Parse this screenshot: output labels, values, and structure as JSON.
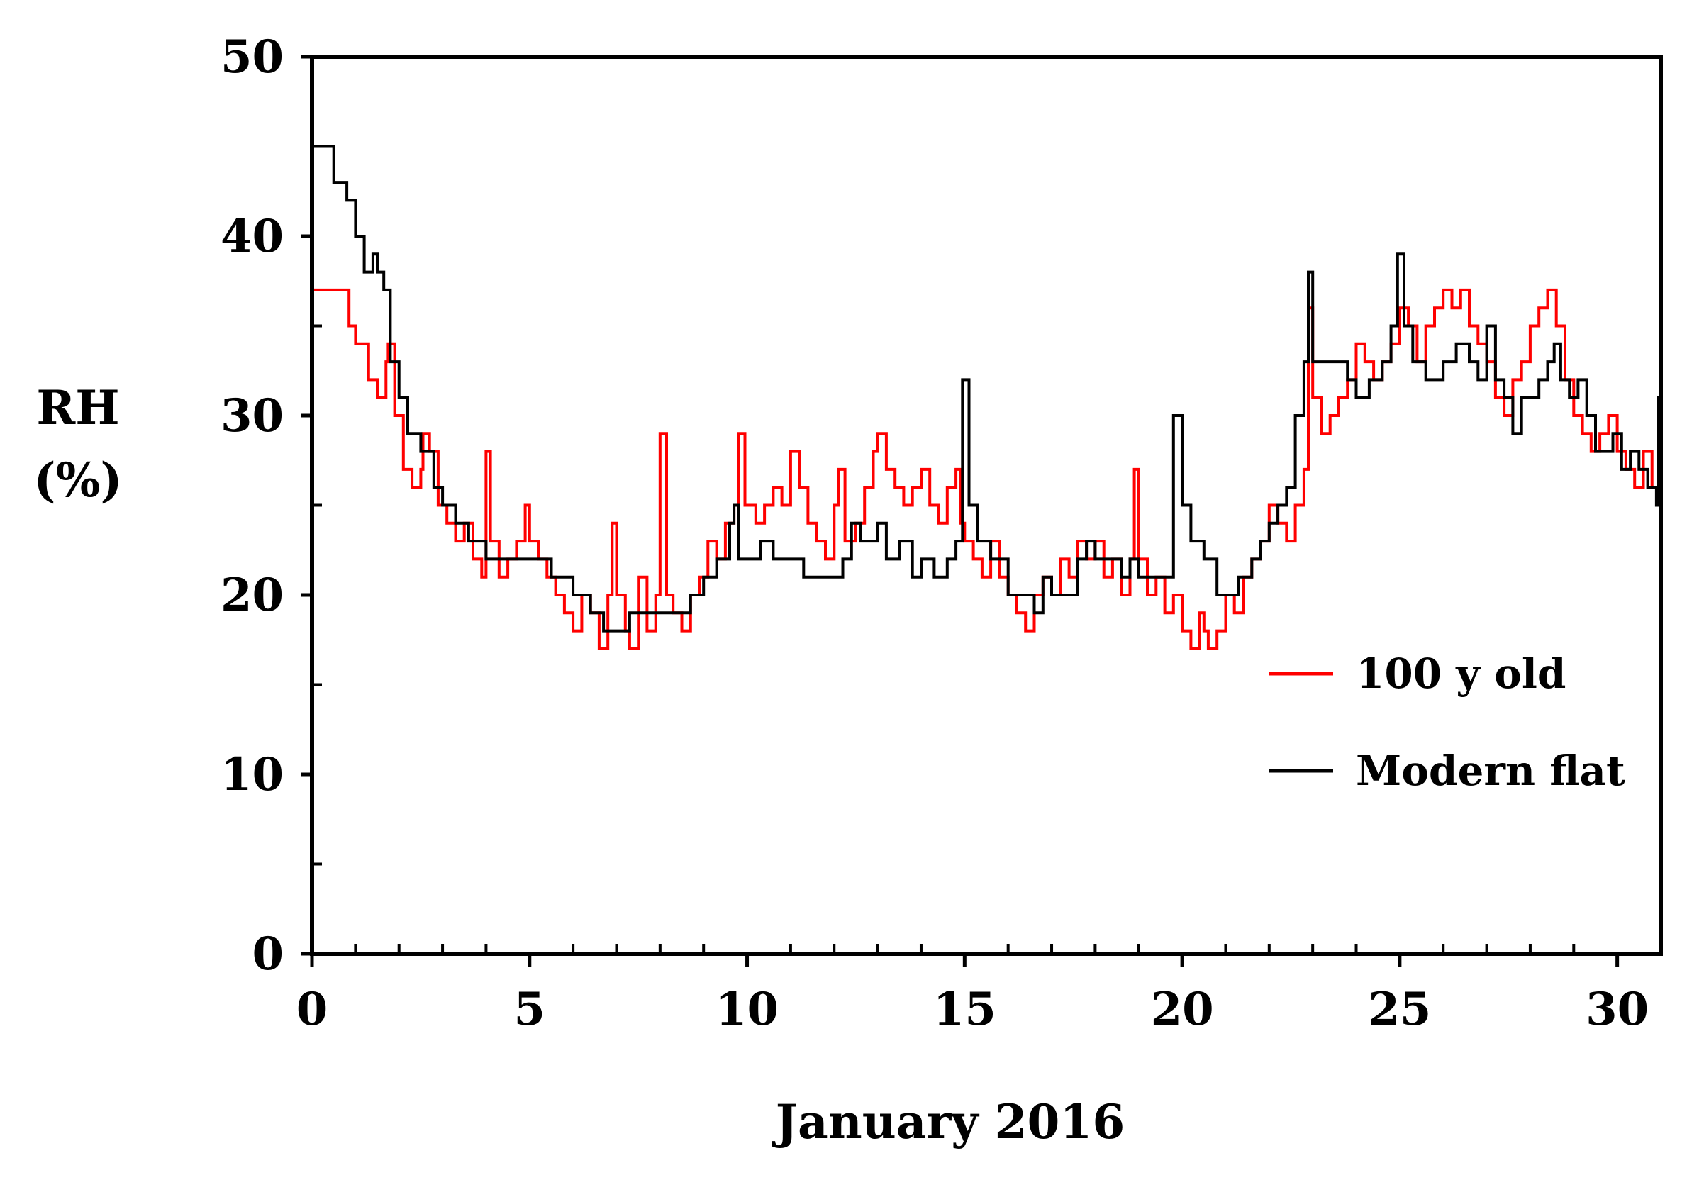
{
  "chart_data": {
    "type": "line",
    "title": "",
    "xlabel": "January 2016",
    "ylabel": [
      "RH",
      "(%)"
    ],
    "xlim": [
      0,
      31
    ],
    "ylim": [
      0,
      50
    ],
    "x_ticks": [
      0,
      5,
      10,
      15,
      20,
      25,
      30
    ],
    "y_ticks": [
      0,
      10,
      20,
      30,
      40,
      50
    ],
    "x_tick_labels": [
      "0",
      "5",
      "10",
      "15",
      "20",
      "25",
      "30"
    ],
    "y_tick_labels": [
      "0",
      "10",
      "20",
      "30",
      "40",
      "50"
    ],
    "grid": false,
    "legend_position": "right",
    "series": [
      {
        "name": "100 y old",
        "color": "#ff0000",
        "points": [
          [
            0.0,
            37
          ],
          [
            0.8,
            37
          ],
          [
            0.85,
            35
          ],
          [
            1.0,
            34
          ],
          [
            1.3,
            32
          ],
          [
            1.5,
            31
          ],
          [
            1.7,
            33
          ],
          [
            1.75,
            34
          ],
          [
            1.9,
            30
          ],
          [
            2.1,
            27
          ],
          [
            2.3,
            26
          ],
          [
            2.5,
            27
          ],
          [
            2.55,
            29
          ],
          [
            2.7,
            28
          ],
          [
            2.9,
            25
          ],
          [
            3.1,
            24
          ],
          [
            3.3,
            23
          ],
          [
            3.5,
            24
          ],
          [
            3.7,
            22
          ],
          [
            3.9,
            21
          ],
          [
            4.0,
            28
          ],
          [
            4.1,
            23
          ],
          [
            4.3,
            21
          ],
          [
            4.5,
            22
          ],
          [
            4.7,
            23
          ],
          [
            4.9,
            25
          ],
          [
            5.0,
            23
          ],
          [
            5.2,
            22
          ],
          [
            5.4,
            21
          ],
          [
            5.6,
            20
          ],
          [
            5.8,
            19
          ],
          [
            6.0,
            18
          ],
          [
            6.2,
            20
          ],
          [
            6.4,
            19
          ],
          [
            6.6,
            17
          ],
          [
            6.8,
            20
          ],
          [
            6.9,
            24
          ],
          [
            7.0,
            20
          ],
          [
            7.2,
            18
          ],
          [
            7.3,
            17
          ],
          [
            7.5,
            21
          ],
          [
            7.7,
            18
          ],
          [
            7.9,
            20
          ],
          [
            8.0,
            29
          ],
          [
            8.15,
            20
          ],
          [
            8.3,
            19
          ],
          [
            8.5,
            18
          ],
          [
            8.7,
            20
          ],
          [
            8.9,
            21
          ],
          [
            9.1,
            23
          ],
          [
            9.3,
            22
          ],
          [
            9.5,
            24
          ],
          [
            9.7,
            25
          ],
          [
            9.8,
            29
          ],
          [
            9.95,
            25
          ],
          [
            10.2,
            24
          ],
          [
            10.4,
            25
          ],
          [
            10.6,
            26
          ],
          [
            10.8,
            25
          ],
          [
            11.0,
            28
          ],
          [
            11.2,
            26
          ],
          [
            11.4,
            24
          ],
          [
            11.6,
            23
          ],
          [
            11.8,
            22
          ],
          [
            12.0,
            25
          ],
          [
            12.1,
            27
          ],
          [
            12.25,
            23
          ],
          [
            12.5,
            24
          ],
          [
            12.7,
            26
          ],
          [
            12.9,
            28
          ],
          [
            13.0,
            29
          ],
          [
            13.2,
            27
          ],
          [
            13.4,
            26
          ],
          [
            13.6,
            25
          ],
          [
            13.8,
            26
          ],
          [
            14.0,
            27
          ],
          [
            14.2,
            25
          ],
          [
            14.4,
            24
          ],
          [
            14.6,
            26
          ],
          [
            14.8,
            27
          ],
          [
            14.9,
            24
          ],
          [
            15.0,
            23
          ],
          [
            15.2,
            22
          ],
          [
            15.4,
            21
          ],
          [
            15.6,
            23
          ],
          [
            15.8,
            21
          ],
          [
            16.0,
            20
          ],
          [
            16.2,
            19
          ],
          [
            16.4,
            18
          ],
          [
            16.6,
            20
          ],
          [
            16.8,
            21
          ],
          [
            17.0,
            20
          ],
          [
            17.2,
            22
          ],
          [
            17.4,
            21
          ],
          [
            17.6,
            23
          ],
          [
            17.8,
            22
          ],
          [
            18.0,
            23
          ],
          [
            18.2,
            21
          ],
          [
            18.4,
            22
          ],
          [
            18.6,
            20
          ],
          [
            18.8,
            22
          ],
          [
            18.9,
            27
          ],
          [
            19.0,
            22
          ],
          [
            19.2,
            20
          ],
          [
            19.4,
            21
          ],
          [
            19.6,
            19
          ],
          [
            19.8,
            20
          ],
          [
            20.0,
            18
          ],
          [
            20.2,
            17
          ],
          [
            20.4,
            19
          ],
          [
            20.5,
            18
          ],
          [
            20.6,
            17
          ],
          [
            20.8,
            18
          ],
          [
            21.0,
            20
          ],
          [
            21.2,
            19
          ],
          [
            21.4,
            21
          ],
          [
            21.6,
            22
          ],
          [
            21.8,
            23
          ],
          [
            22.0,
            25
          ],
          [
            22.2,
            24
          ],
          [
            22.4,
            23
          ],
          [
            22.6,
            25
          ],
          [
            22.8,
            27
          ],
          [
            22.9,
            36
          ],
          [
            23.0,
            31
          ],
          [
            23.2,
            29
          ],
          [
            23.4,
            30
          ],
          [
            23.6,
            31
          ],
          [
            23.8,
            32
          ],
          [
            24.0,
            34
          ],
          [
            24.2,
            33
          ],
          [
            24.4,
            32
          ],
          [
            24.6,
            33
          ],
          [
            24.8,
            34
          ],
          [
            25.0,
            36
          ],
          [
            25.2,
            35
          ],
          [
            25.4,
            33
          ],
          [
            25.6,
            35
          ],
          [
            25.8,
            36
          ],
          [
            26.0,
            37
          ],
          [
            26.2,
            36
          ],
          [
            26.4,
            37
          ],
          [
            26.6,
            35
          ],
          [
            26.8,
            34
          ],
          [
            27.0,
            33
          ],
          [
            27.2,
            31
          ],
          [
            27.4,
            30
          ],
          [
            27.6,
            32
          ],
          [
            27.8,
            33
          ],
          [
            28.0,
            35
          ],
          [
            28.2,
            36
          ],
          [
            28.4,
            37
          ],
          [
            28.6,
            35
          ],
          [
            28.8,
            32
          ],
          [
            29.0,
            30
          ],
          [
            29.2,
            29
          ],
          [
            29.4,
            28
          ],
          [
            29.6,
            29
          ],
          [
            29.8,
            30
          ],
          [
            30.0,
            28
          ],
          [
            30.2,
            27
          ],
          [
            30.4,
            26
          ],
          [
            30.6,
            28
          ],
          [
            30.8,
            26
          ],
          [
            31.0,
            27
          ]
        ]
      },
      {
        "name": "Modern flat",
        "color": "#000000",
        "points": [
          [
            0.0,
            45
          ],
          [
            0.4,
            45
          ],
          [
            0.5,
            43
          ],
          [
            0.8,
            42
          ],
          [
            1.0,
            40
          ],
          [
            1.2,
            38
          ],
          [
            1.4,
            39
          ],
          [
            1.5,
            38
          ],
          [
            1.65,
            37
          ],
          [
            1.8,
            33
          ],
          [
            2.0,
            31
          ],
          [
            2.2,
            29
          ],
          [
            2.5,
            28
          ],
          [
            2.8,
            26
          ],
          [
            3.0,
            25
          ],
          [
            3.3,
            24
          ],
          [
            3.6,
            23
          ],
          [
            4.0,
            22
          ],
          [
            4.5,
            22
          ],
          [
            5.0,
            22
          ],
          [
            5.5,
            21
          ],
          [
            6.0,
            20
          ],
          [
            6.4,
            19
          ],
          [
            6.7,
            18
          ],
          [
            7.2,
            18
          ],
          [
            7.3,
            19
          ],
          [
            8.0,
            19
          ],
          [
            8.6,
            19
          ],
          [
            8.7,
            20
          ],
          [
            9.0,
            21
          ],
          [
            9.3,
            22
          ],
          [
            9.6,
            24
          ],
          [
            9.7,
            25
          ],
          [
            9.8,
            22
          ],
          [
            10.0,
            22
          ],
          [
            10.3,
            23
          ],
          [
            10.6,
            22
          ],
          [
            11.0,
            22
          ],
          [
            11.3,
            21
          ],
          [
            11.6,
            21
          ],
          [
            12.0,
            21
          ],
          [
            12.2,
            22
          ],
          [
            12.4,
            24
          ],
          [
            12.6,
            23
          ],
          [
            12.8,
            23
          ],
          [
            13.0,
            24
          ],
          [
            13.2,
            22
          ],
          [
            13.5,
            23
          ],
          [
            13.8,
            21
          ],
          [
            14.0,
            22
          ],
          [
            14.3,
            21
          ],
          [
            14.6,
            22
          ],
          [
            14.8,
            23
          ],
          [
            14.95,
            32
          ],
          [
            15.1,
            25
          ],
          [
            15.3,
            23
          ],
          [
            15.6,
            22
          ],
          [
            16.0,
            20
          ],
          [
            16.3,
            20
          ],
          [
            16.6,
            19
          ],
          [
            16.8,
            21
          ],
          [
            17.0,
            20
          ],
          [
            17.3,
            20
          ],
          [
            17.6,
            22
          ],
          [
            17.8,
            23
          ],
          [
            18.0,
            22
          ],
          [
            18.3,
            22
          ],
          [
            18.6,
            21
          ],
          [
            18.8,
            22
          ],
          [
            19.0,
            21
          ],
          [
            19.3,
            21
          ],
          [
            19.6,
            21
          ],
          [
            19.8,
            30
          ],
          [
            20.0,
            25
          ],
          [
            20.2,
            23
          ],
          [
            20.5,
            22
          ],
          [
            20.8,
            20
          ],
          [
            21.1,
            20
          ],
          [
            21.3,
            21
          ],
          [
            21.6,
            22
          ],
          [
            21.8,
            23
          ],
          [
            22.0,
            24
          ],
          [
            22.2,
            25
          ],
          [
            22.4,
            26
          ],
          [
            22.6,
            30
          ],
          [
            22.8,
            33
          ],
          [
            22.9,
            38
          ],
          [
            23.0,
            33
          ],
          [
            23.3,
            33
          ],
          [
            23.6,
            33
          ],
          [
            23.8,
            32
          ],
          [
            24.0,
            31
          ],
          [
            24.3,
            32
          ],
          [
            24.6,
            33
          ],
          [
            24.8,
            35
          ],
          [
            24.95,
            39
          ],
          [
            25.1,
            35
          ],
          [
            25.3,
            33
          ],
          [
            25.6,
            32
          ],
          [
            26.0,
            33
          ],
          [
            26.3,
            34
          ],
          [
            26.6,
            33
          ],
          [
            26.8,
            32
          ],
          [
            27.0,
            35
          ],
          [
            27.2,
            32
          ],
          [
            27.4,
            31
          ],
          [
            27.6,
            29
          ],
          [
            27.8,
            31
          ],
          [
            28.0,
            31
          ],
          [
            28.2,
            32
          ],
          [
            28.4,
            33
          ],
          [
            28.55,
            34
          ],
          [
            28.7,
            32
          ],
          [
            28.9,
            31
          ],
          [
            29.1,
            32
          ],
          [
            29.3,
            30
          ],
          [
            29.5,
            28
          ],
          [
            29.7,
            28
          ],
          [
            29.9,
            29
          ],
          [
            30.1,
            27
          ],
          [
            30.3,
            28
          ],
          [
            30.5,
            27
          ],
          [
            30.7,
            26
          ],
          [
            30.9,
            25
          ],
          [
            30.95,
            31
          ],
          [
            31.0,
            27
          ]
        ]
      }
    ]
  }
}
